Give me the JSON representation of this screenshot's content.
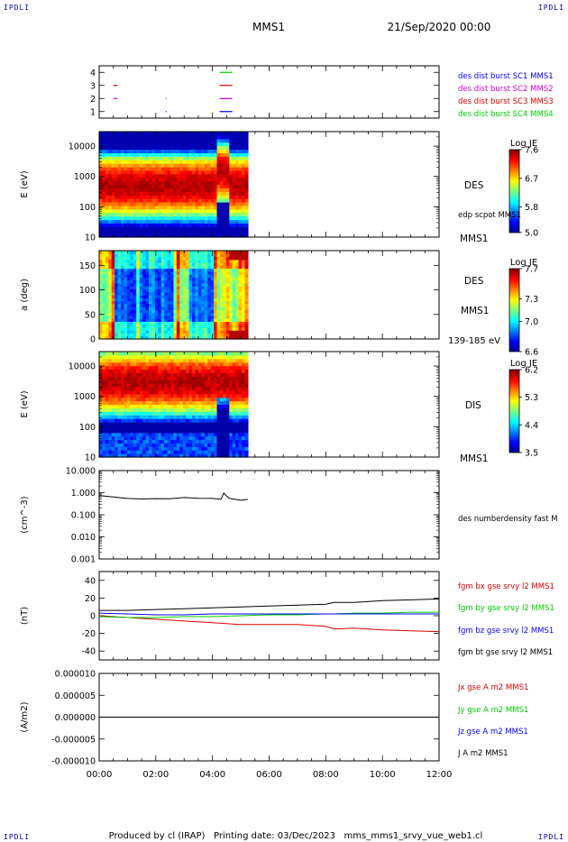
{
  "corner_labels": [
    "IPDLI",
    "IPDLI",
    "IPDLI",
    "IPDLI"
  ],
  "header": {
    "spacecraft": "MMS1",
    "datetime": "21/Sep/2020 00:00"
  },
  "footer": "Produced by cl (IRAP)   Printing date: 03/Dec/2023   mms_mms1_srvy_vue_web1.cl",
  "time_axis": {
    "ticks": [
      "00:00",
      "02:00",
      "04:00",
      "06:00",
      "08:00",
      "10:00",
      "12:00"
    ],
    "range_hours": [
      0,
      12
    ]
  },
  "colors": {
    "blue": "#0000ff",
    "magenta": "#cc00cc",
    "red": "#dd0000",
    "green": "#00cc00",
    "black": "#000000",
    "corner": "#0000aa"
  },
  "chart_data": [
    {
      "type": "scatter",
      "panel": "burst-availability",
      "yticks": [
        "1",
        "2",
        "3",
        "4"
      ],
      "ylim": [
        0.5,
        4.5
      ],
      "legend": [
        {
          "label": "des dist burst SC1 MMS1",
          "color": "#0000ff"
        },
        {
          "label": "des dist burst SC2 MMS2",
          "color": "#cc00cc"
        },
        {
          "label": "des dist burst SC3 MMS3",
          "color": "#dd0000"
        },
        {
          "label": "des dist burst SC4 MMS4",
          "color": "#00cc00"
        }
      ],
      "segments": [
        {
          "level": 4,
          "color": "#00cc00",
          "start": 4.25,
          "end": 4.7
        },
        {
          "level": 3,
          "color": "#dd0000",
          "start": 0.5,
          "end": 0.65
        },
        {
          "level": 3,
          "color": "#dd0000",
          "start": 4.25,
          "end": 4.7
        },
        {
          "level": 2,
          "color": "#cc00cc",
          "start": 0.5,
          "end": 0.65
        },
        {
          "level": 2,
          "color": "#cc00cc",
          "start": 2.35,
          "end": 2.38
        },
        {
          "level": 2,
          "color": "#cc00cc",
          "start": 4.25,
          "end": 4.7
        },
        {
          "level": 1,
          "color": "#0000ff",
          "start": 2.35,
          "end": 2.38
        },
        {
          "level": 1,
          "color": "#0000ff",
          "start": 4.25,
          "end": 4.7
        }
      ]
    },
    {
      "type": "heatmap",
      "panel": "des-energy",
      "ylabel": "E (eV)",
      "yscale": "log",
      "ylim": [
        10,
        30000
      ],
      "yticks": [
        "10",
        "100",
        "1000",
        "10000"
      ],
      "data_end_hours": 5.25,
      "right_labels": [
        "DES",
        "edp scpot MMS1",
        "MMS1"
      ],
      "colorbar": {
        "title": "Log JE",
        "min": 5.0,
        "max": 7.6,
        "ticks": [
          "7.6",
          "6.7",
          "5.8",
          "5.0"
        ]
      },
      "peak_energy_ev": 500
    },
    {
      "type": "heatmap",
      "panel": "des-pitch-angle",
      "ylabel": "a (deg)",
      "ylim": [
        0,
        180
      ],
      "yticks": [
        "0",
        "50",
        "100",
        "150"
      ],
      "data_end_hours": 5.25,
      "right_labels": [
        "DES",
        "MMS1",
        "139-185 eV"
      ],
      "colorbar": {
        "title": "Log JE",
        "min": 6.6,
        "max": 7.7,
        "ticks": [
          "7.7",
          "7.3",
          "7.0",
          "6.6"
        ]
      }
    },
    {
      "type": "heatmap",
      "panel": "dis-energy",
      "ylabel": "E (eV)",
      "yscale": "log",
      "ylim": [
        10,
        30000
      ],
      "yticks": [
        "10",
        "100",
        "1000",
        "10000"
      ],
      "data_end_hours": 5.25,
      "right_labels": [
        "DIS",
        "MMS1"
      ],
      "colorbar": {
        "title": "Log JE",
        "min": 3.5,
        "max": 6.2,
        "ticks": [
          "6.2",
          "5.3",
          "4.4",
          "3.5"
        ]
      },
      "peak_energy_ev": 3000
    },
    {
      "type": "line",
      "panel": "number-density",
      "ylabel": "(cm^-3)",
      "yscale": "log",
      "ylim": [
        0.001,
        10
      ],
      "yticks": [
        "0.001",
        "0.010",
        "0.100",
        "1.000",
        "10.000"
      ],
      "legend": [
        {
          "label": "des numberdensity fast M",
          "color": "#000000"
        }
      ],
      "x": [
        0,
        0.3,
        0.6,
        1.0,
        1.5,
        2.0,
        2.5,
        3.0,
        3.5,
        4.0,
        4.3,
        4.4,
        4.5,
        4.6,
        4.8,
        5.0,
        5.25
      ],
      "y": [
        0.75,
        0.68,
        0.62,
        0.55,
        0.52,
        0.54,
        0.53,
        0.6,
        0.56,
        0.55,
        0.5,
        0.95,
        0.7,
        0.55,
        0.5,
        0.45,
        0.5
      ]
    },
    {
      "type": "line",
      "panel": "magnetic-field",
      "ylabel": "(nT)",
      "ylim": [
        -50,
        50
      ],
      "yticks": [
        "-40",
        "-20",
        "0",
        "20",
        "40"
      ],
      "x": [
        0,
        1,
        2,
        3,
        4,
        5,
        6,
        7,
        8,
        8.3,
        9,
        10,
        11,
        12
      ],
      "series": [
        {
          "name": "fgm bx gse srvy l2 MMS1",
          "color": "#dd0000",
          "values": [
            0,
            -2,
            -4,
            -6,
            -8,
            -10,
            -10,
            -10,
            -12,
            -15,
            -14,
            -16,
            -17,
            -18
          ]
        },
        {
          "name": "fgm by gse srvy l2 MMS1",
          "color": "#00cc00",
          "values": [
            -1,
            -2,
            -2,
            -1,
            -1,
            0,
            1,
            1,
            2,
            2,
            3,
            3,
            4,
            4
          ]
        },
        {
          "name": "fgm bz gse srvy l2 MMS1",
          "color": "#0000ff",
          "values": [
            3,
            2,
            1,
            1,
            2,
            2,
            2,
            2,
            2,
            2,
            2,
            2,
            2,
            2
          ]
        },
        {
          "name": "fgm bt gse srvy l2 MMS1",
          "color": "#000000",
          "values": [
            6,
            6,
            7,
            8,
            9,
            10,
            11,
            12,
            13,
            15,
            15,
            17,
            18,
            19
          ]
        }
      ]
    },
    {
      "type": "line",
      "panel": "current-density",
      "ylabel": "(A/m2)",
      "ylim": [
        -1e-05,
        1e-05
      ],
      "yticks": [
        "-0.000010",
        "-0.000005",
        "0.000000",
        "0.000005",
        "0.000010"
      ],
      "x": [
        0,
        12
      ],
      "series": [
        {
          "name": "Jx gse A m2 MMS1",
          "color": "#dd0000",
          "values": [
            0,
            0
          ]
        },
        {
          "name": "Jy gse A m2 MMS1",
          "color": "#00cc00",
          "values": [
            0,
            0
          ]
        },
        {
          "name": "Jz gse A m2 MMS1",
          "color": "#0000ff",
          "values": [
            0,
            0
          ]
        },
        {
          "name": "J A m2 MMS1",
          "color": "#000000",
          "values": [
            0,
            0
          ]
        }
      ]
    }
  ]
}
